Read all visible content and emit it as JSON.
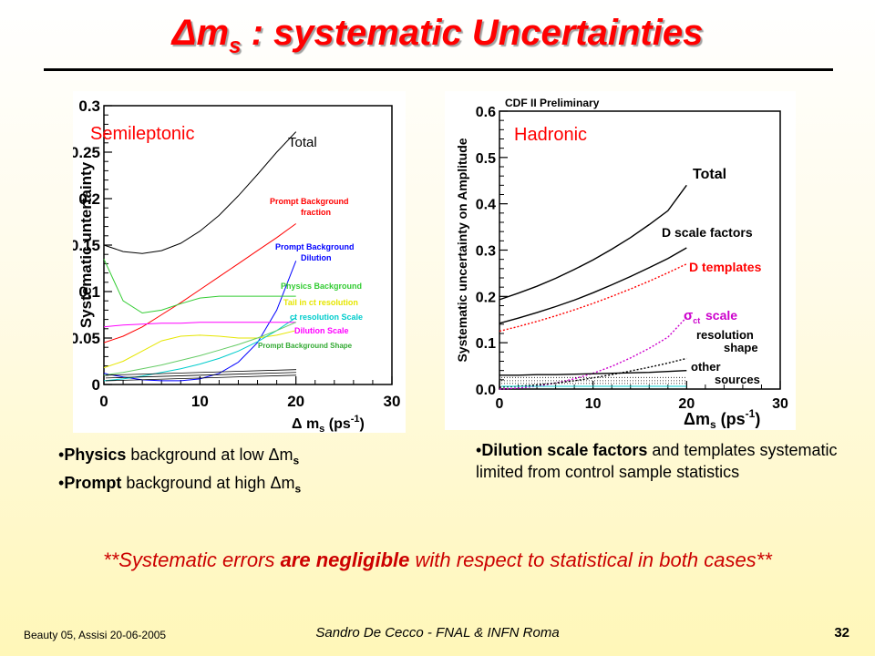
{
  "header": {
    "title_delta": "Δ",
    "title_m": "m",
    "title_sub": "s",
    "title_rest": " : systematic Uncertainties"
  },
  "chart_data": [
    {
      "type": "line",
      "panel_label": "Semileptonic",
      "title": "",
      "xlabel": "Δ m_s (ps^-1)",
      "ylabel": "Systematic untertainty",
      "xlim": [
        0,
        30
      ],
      "ylim": [
        0,
        0.3
      ],
      "xticks": [
        "0",
        "10",
        "20",
        "30"
      ],
      "yticks": [
        "0",
        "0.05",
        "0.1",
        "0.15",
        "0.2",
        "0.25",
        "0.3"
      ],
      "grid": false,
      "legend": "right",
      "series": [
        {
          "name": "Total",
          "color": "#000000",
          "x": [
            0,
            2,
            4,
            6,
            8,
            10,
            12,
            14,
            16,
            18,
            20
          ],
          "y": [
            0.15,
            0.143,
            0.141,
            0.144,
            0.152,
            0.165,
            0.182,
            0.203,
            0.226,
            0.25,
            0.272
          ]
        },
        {
          "name": "Prompt Background fraction",
          "color": "#ff0000",
          "x": [
            0,
            2,
            4,
            6,
            8,
            10,
            12,
            14,
            16,
            18,
            20
          ],
          "y": [
            0.045,
            0.052,
            0.062,
            0.075,
            0.088,
            0.102,
            0.116,
            0.13,
            0.144,
            0.158,
            0.173
          ]
        },
        {
          "name": "Prompt Background Dilution",
          "color": "#0000ff",
          "x": [
            0,
            2,
            4,
            6,
            8,
            10,
            12,
            14,
            16,
            18,
            20
          ],
          "y": [
            0.012,
            0.008,
            0.005,
            0.004,
            0.004,
            0.006,
            0.012,
            0.024,
            0.045,
            0.08,
            0.133
          ]
        },
        {
          "name": "Physics Background",
          "color": "#33cc33",
          "x": [
            0,
            2,
            4,
            6,
            8,
            10,
            12,
            14,
            16,
            18,
            20
          ],
          "y": [
            0.135,
            0.09,
            0.077,
            0.08,
            0.087,
            0.093,
            0.095,
            0.095,
            0.095,
            0.095,
            0.095
          ]
        },
        {
          "name": "Tail in ct resolution",
          "color": "#e6e600",
          "x": [
            0,
            2,
            4,
            6,
            8,
            10,
            12,
            14,
            16,
            18,
            20
          ],
          "y": [
            0.018,
            0.025,
            0.036,
            0.047,
            0.052,
            0.053,
            0.052,
            0.05,
            0.05,
            0.053,
            0.058
          ]
        },
        {
          "name": "ct resolution Scale",
          "color": "#00cccc",
          "x": [
            0,
            2,
            4,
            6,
            8,
            10,
            12,
            14,
            16,
            18,
            20
          ],
          "y": [
            0.004,
            0.006,
            0.009,
            0.013,
            0.017,
            0.022,
            0.028,
            0.036,
            0.046,
            0.058,
            0.072
          ]
        },
        {
          "name": "Dilution Scale",
          "color": "#ff00ff",
          "x": [
            0,
            2,
            4,
            6,
            8,
            10,
            12,
            14,
            16,
            18,
            20
          ],
          "y": [
            0.062,
            0.064,
            0.065,
            0.066,
            0.066,
            0.067,
            0.067,
            0.067,
            0.067,
            0.067,
            0.067
          ]
        },
        {
          "name": "Prompt Background Shape",
          "color": "#66cc66",
          "x": [
            0,
            2,
            4,
            6,
            8,
            10,
            12,
            14,
            16,
            18,
            20
          ],
          "y": [
            0.01,
            0.013,
            0.017,
            0.021,
            0.026,
            0.031,
            0.037,
            0.043,
            0.05,
            0.058,
            0.067
          ]
        }
      ],
      "legend_texts": [
        "Total",
        "Prompt Background",
        "fraction",
        "Prompt Background",
        "Dilution",
        "Physics Background",
        "Tail in ct resolution",
        "ct resolution Scale",
        "Dilution Scale",
        "Prompt Background Shape"
      ]
    },
    {
      "type": "line",
      "panel_label": "Hadronic",
      "title": "CDF II Preliminary",
      "xlabel": "Δm_s (ps^-1)",
      "ylabel": "Systematic uncertainty on Amplitude",
      "xlim": [
        0,
        30
      ],
      "ylim": [
        0,
        0.6
      ],
      "xticks": [
        "0",
        "10",
        "20",
        "30"
      ],
      "yticks": [
        "0.0",
        "0.1",
        "0.2",
        "0.3",
        "0.4",
        "0.5",
        "0.6"
      ],
      "grid": false,
      "legend": "right",
      "series": [
        {
          "name": "Total",
          "color": "#000000",
          "x": [
            0,
            2,
            4,
            6,
            8,
            10,
            12,
            14,
            16,
            18,
            20
          ],
          "y": [
            0.193,
            0.207,
            0.222,
            0.239,
            0.258,
            0.279,
            0.302,
            0.327,
            0.355,
            0.385,
            0.44
          ]
        },
        {
          "name": "D scale factors",
          "color": "#000000",
          "x": [
            0,
            2,
            4,
            6,
            8,
            10,
            12,
            14,
            16,
            18,
            20
          ],
          "y": [
            0.142,
            0.153,
            0.165,
            0.178,
            0.192,
            0.208,
            0.225,
            0.243,
            0.262,
            0.282,
            0.305
          ]
        },
        {
          "name": "D templates",
          "color": "#ff0000",
          "x": [
            0,
            2,
            4,
            6,
            8,
            10,
            12,
            14,
            16,
            18,
            20
          ],
          "y": [
            0.125,
            0.135,
            0.146,
            0.158,
            0.171,
            0.185,
            0.2,
            0.216,
            0.233,
            0.251,
            0.27
          ]
        },
        {
          "name": "σ_ct scale",
          "color": "#cc00cc",
          "x": [
            0,
            2,
            4,
            6,
            8,
            10,
            12,
            14,
            16,
            18,
            20
          ],
          "y": [
            0.0,
            0.002,
            0.006,
            0.013,
            0.022,
            0.034,
            0.049,
            0.067,
            0.088,
            0.112,
            0.155
          ]
        },
        {
          "name": "resolution shape",
          "color": "#000000",
          "x": [
            0,
            2,
            4,
            6,
            8,
            10,
            12,
            14,
            16,
            18,
            20
          ],
          "y": [
            0.004,
            0.006,
            0.009,
            0.013,
            0.018,
            0.024,
            0.031,
            0.039,
            0.047,
            0.056,
            0.066
          ]
        },
        {
          "name": "other sources",
          "color": "#000000",
          "x": [
            0,
            2,
            4,
            6,
            8,
            10,
            12,
            14,
            16,
            18,
            20
          ],
          "y": [
            0.03,
            0.03,
            0.031,
            0.031,
            0.032,
            0.033,
            0.034,
            0.035,
            0.036,
            0.038,
            0.04
          ]
        }
      ],
      "legend_texts": [
        "Total",
        "D scale factors",
        "D templates",
        "scale",
        "resolution",
        "shape",
        "other",
        "sources"
      ]
    }
  ],
  "left_bullets": [
    {
      "bold": "Physics",
      "text": " background at low ",
      "delta": "Δ",
      "m": "m",
      "sub": "s"
    },
    {
      "bold": "Prompt",
      "text": " background at high ",
      "delta": "Δ",
      "m": "m",
      "sub": "s"
    }
  ],
  "right_bullet": {
    "bold": "Dilution scale factors",
    "text": " and templates systematic limited from control sample statistics"
  },
  "conclusion": {
    "pre": "**Systematic errors ",
    "bold": "are negligible",
    "post": " with respect to statistical in both cases**"
  },
  "footer": {
    "left": "Beauty 05, Assisi 20-06-2005",
    "center": "Sandro De Cecco - FNAL & INFN Roma",
    "page": "32"
  }
}
